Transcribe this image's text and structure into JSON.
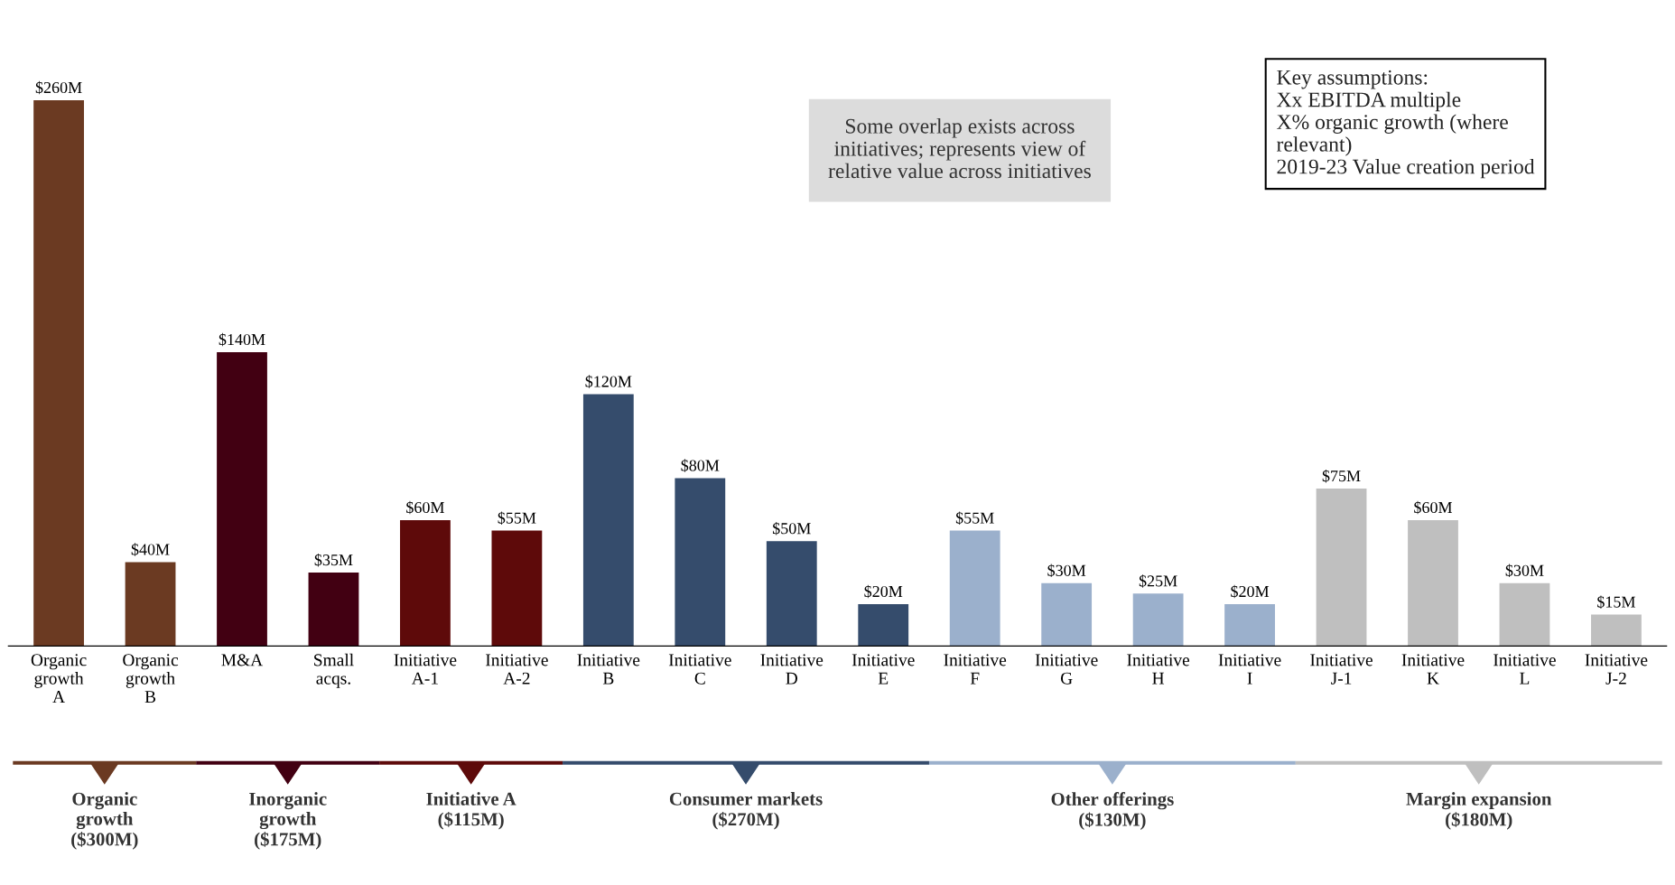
{
  "chart_data": {
    "type": "bar",
    "categories": [
      "Organic\ngrowth\nA",
      "Organic\ngrowth\nB",
      "M&A",
      "Small\nacqs.",
      "Initiative\nA-1",
      "Initiative\nA-2",
      "Initiative\nB",
      "Initiative\nC",
      "Initiative\nD",
      "Initiative\nE",
      "Initiative\nF",
      "Initiative\nG",
      "Initiative\nH",
      "Initiative\nI",
      "Initiative\nJ-1",
      "Initiative\nK",
      "Initiative\nL",
      "Initiative\nJ-2"
    ],
    "values": [
      260,
      40,
      140,
      35,
      60,
      55,
      120,
      80,
      50,
      20,
      55,
      30,
      25,
      20,
      75,
      60,
      30,
      15
    ],
    "colors": [
      "#6b3a22",
      "#6b3a22",
      "#420012",
      "#420012",
      "#5e0a0a",
      "#5e0a0a",
      "#354c6c",
      "#354c6c",
      "#354c6c",
      "#354c6c",
      "#9bb0cc",
      "#9bb0cc",
      "#9bb0cc",
      "#9bb0cc",
      "#bfbfbf",
      "#bfbfbf",
      "#bfbfbf",
      "#bfbfbf"
    ],
    "value_labels": [
      "$260M",
      "$40M",
      "$140M",
      "$35M",
      "$60M",
      "$55M",
      "$120M",
      "$80M",
      "$50M",
      "$20M",
      "$55M",
      "$30M",
      "$25M",
      "$20M",
      "$75M",
      "$60M",
      "$30M",
      "$15M"
    ],
    "annotations": [
      "Organic\ngrowth\n($300M)",
      "Inorganic\ngrowth\n($175M)",
      "Initiative A\n($115M)",
      "Consumer markets\n($270M)",
      "Other offerings\n($130M)",
      "Margin expansion\n($180M)",
      "Some overlap exists across\ninitiatives; represents view of\nrelative value across initiatives",
      "Key assumptions:\nXx EBITDA multiple\nX% organic growth (where\nrelevant)\n2019-23 Value creation period"
    ],
    "grid": false,
    "legend": false
  }
}
